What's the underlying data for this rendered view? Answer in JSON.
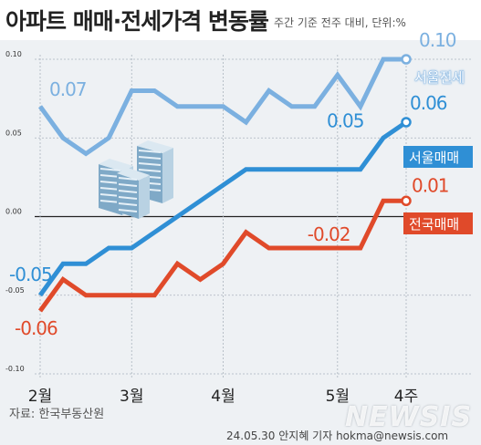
{
  "header": {
    "title": "아파트 매매·전세가격 변동률",
    "subtitle": "주간 기준 전주 대비, 단위:%"
  },
  "footer": {
    "source": "자료: 한국부동산원",
    "credit": "24.05.30 안지혜 기자 hokma@newsis.com",
    "watermark": "NEWSIS"
  },
  "colors": {
    "seoul_jeonse": "#7bb0e0",
    "seoul_sale": "#2f8fd5",
    "national_sale": "#e04a2a",
    "zero_line": "#222222",
    "grid": "#aab4be"
  },
  "chart_data": {
    "type": "line",
    "xlabel": "",
    "ylabel": "",
    "ylim": [
      -0.1,
      0.1
    ],
    "yticks": [
      "0.10",
      "0.05",
      "0.00",
      "-0.05",
      "-0.10"
    ],
    "ytick_values": [
      0.1,
      0.05,
      0.0,
      -0.05,
      -0.1
    ],
    "xtick_labels": [
      {
        "label": "2월",
        "index": 0
      },
      {
        "label": "3월",
        "index": 4
      },
      {
        "label": "4월",
        "index": 8
      },
      {
        "label": "5월",
        "index": 13
      },
      {
        "label": "4주",
        "index": 16
      }
    ],
    "grid": true,
    "series": [
      {
        "name": "서울전세",
        "color": "#7bb0e0",
        "values": [
          0.07,
          0.05,
          0.04,
          0.05,
          0.08,
          0.08,
          0.07,
          0.07,
          0.07,
          0.06,
          0.08,
          0.07,
          0.07,
          0.09,
          0.07,
          0.1,
          0.1
        ],
        "labels": [
          {
            "index": 0,
            "text": "0.07"
          },
          {
            "index": 16,
            "text": "0.10"
          }
        ]
      },
      {
        "name": "서울매매",
        "color": "#2f8fd5",
        "values": [
          -0.05,
          -0.03,
          -0.03,
          -0.02,
          -0.02,
          -0.01,
          0.0,
          0.01,
          0.02,
          0.03,
          0.03,
          0.03,
          0.03,
          0.03,
          0.03,
          0.05,
          0.06
        ],
        "labels": [
          {
            "index": 15,
            "text": "0.05"
          },
          {
            "index": 16,
            "text": "0.06"
          },
          {
            "index": 0,
            "text": "-0.05"
          }
        ]
      },
      {
        "name": "전국매매",
        "color": "#e04a2a",
        "values": [
          -0.06,
          -0.04,
          -0.05,
          -0.05,
          -0.05,
          -0.05,
          -0.03,
          -0.04,
          -0.03,
          -0.01,
          -0.02,
          -0.02,
          -0.02,
          -0.02,
          -0.02,
          0.01,
          0.01
        ],
        "labels": [
          {
            "index": 12,
            "text": "-0.02"
          },
          {
            "index": 16,
            "text": "0.01"
          },
          {
            "index": 0,
            "text": "-0.06"
          }
        ]
      }
    ]
  }
}
